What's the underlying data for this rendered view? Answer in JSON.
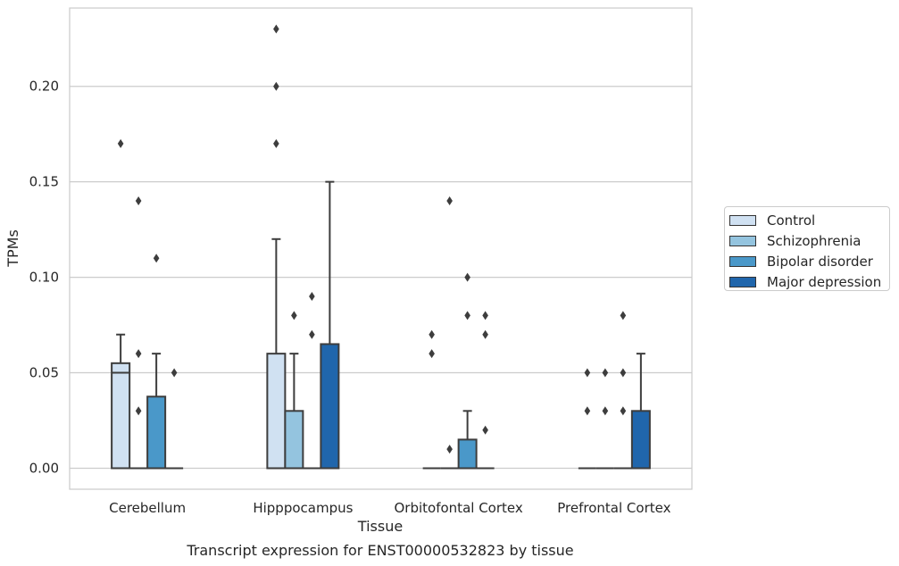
{
  "chart_data": {
    "type": "box",
    "title": "",
    "caption": "Transcript expression for ENST00000532823 by tissue",
    "xlabel": "Tissue",
    "ylabel": "TPMs",
    "ylim": [
      -0.011,
      0.241
    ],
    "yticks": [
      0.0,
      0.05,
      0.1,
      0.15,
      0.2
    ],
    "ytick_labels": [
      "0.00",
      "0.05",
      "0.10",
      "0.15",
      "0.20"
    ],
    "grid": "horizontal",
    "legend_position": "right",
    "categories": [
      "Cerebellum",
      "Hipppocampus",
      "Orbitofontal Cortex",
      "Prefrontal Cortex"
    ],
    "series": [
      {
        "name": "Control",
        "color": "#d0e1f2",
        "boxes": [
          {
            "q1": 0.0,
            "median": 0.05,
            "q3": 0.055,
            "whisker_low": 0.0,
            "whisker_high": 0.07,
            "outliers": [
              0.17
            ]
          },
          {
            "q1": 0.0,
            "median": 0.0,
            "q3": 0.06,
            "whisker_low": 0.0,
            "whisker_high": 0.12,
            "outliers": [
              0.17,
              0.2,
              0.23
            ]
          },
          {
            "q1": 0.0,
            "median": 0.0,
            "q3": 0.0,
            "whisker_low": 0.0,
            "whisker_high": 0.0,
            "outliers": [
              0.06,
              0.07
            ]
          },
          {
            "q1": 0.0,
            "median": 0.0,
            "q3": 0.0,
            "whisker_low": 0.0,
            "whisker_high": 0.0,
            "outliers": [
              0.03,
              0.05
            ]
          }
        ]
      },
      {
        "name": "Schizophrenia",
        "color": "#94c4df",
        "boxes": [
          {
            "q1": 0.0,
            "median": 0.0,
            "q3": 0.0,
            "whisker_low": 0.0,
            "whisker_high": 0.0,
            "outliers": [
              0.03,
              0.06,
              0.14
            ]
          },
          {
            "q1": 0.0,
            "median": 0.0,
            "q3": 0.03,
            "whisker_low": 0.0,
            "whisker_high": 0.06,
            "outliers": [
              0.08
            ]
          },
          {
            "q1": 0.0,
            "median": 0.0,
            "q3": 0.0,
            "whisker_low": 0.0,
            "whisker_high": 0.0,
            "outliers": [
              0.01,
              0.14
            ]
          },
          {
            "q1": 0.0,
            "median": 0.0,
            "q3": 0.0,
            "whisker_low": 0.0,
            "whisker_high": 0.0,
            "outliers": [
              0.03,
              0.05
            ]
          }
        ]
      },
      {
        "name": "Bipolar disorder",
        "color": "#4a98c9",
        "boxes": [
          {
            "q1": 0.0,
            "median": 0.0,
            "q3": 0.0375,
            "whisker_low": 0.0,
            "whisker_high": 0.06,
            "outliers": [
              0.11
            ]
          },
          {
            "q1": 0.0,
            "median": 0.0,
            "q3": 0.0,
            "whisker_low": 0.0,
            "whisker_high": 0.0,
            "outliers": [
              0.07,
              0.09
            ]
          },
          {
            "q1": 0.0,
            "median": 0.0,
            "q3": 0.015,
            "whisker_low": 0.0,
            "whisker_high": 0.03,
            "outliers": [
              0.08,
              0.1
            ]
          },
          {
            "q1": 0.0,
            "median": 0.0,
            "q3": 0.0,
            "whisker_low": 0.0,
            "whisker_high": 0.0,
            "outliers": [
              0.03,
              0.05,
              0.08
            ]
          }
        ]
      },
      {
        "name": "Major depression",
        "color": "#2066ac",
        "boxes": [
          {
            "q1": 0.0,
            "median": 0.0,
            "q3": 0.0,
            "whisker_low": 0.0,
            "whisker_high": 0.0,
            "outliers": [
              0.05
            ]
          },
          {
            "q1": 0.0,
            "median": 0.0,
            "q3": 0.065,
            "whisker_low": 0.0,
            "whisker_high": 0.15,
            "outliers": []
          },
          {
            "q1": 0.0,
            "median": 0.0,
            "q3": 0.0,
            "whisker_low": 0.0,
            "whisker_high": 0.0,
            "outliers": [
              0.02,
              0.07,
              0.08
            ]
          },
          {
            "q1": 0.0,
            "median": 0.0,
            "q3": 0.03,
            "whisker_low": 0.0,
            "whisker_high": 0.06,
            "outliers": []
          }
        ]
      }
    ]
  }
}
